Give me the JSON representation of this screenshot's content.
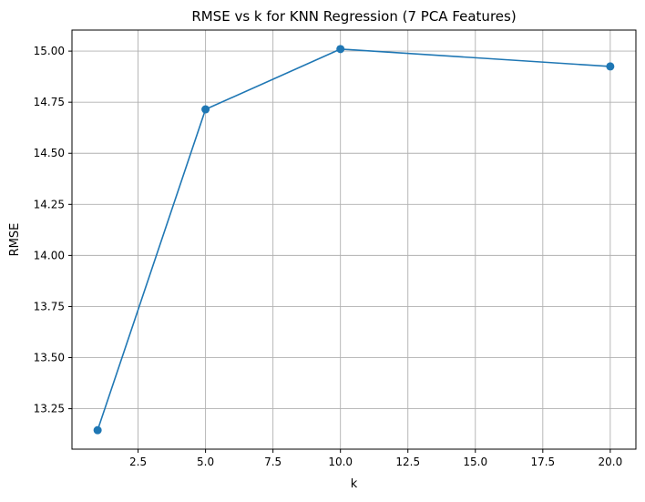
{
  "chart_data": {
    "type": "line",
    "title": "RMSE vs k for KNN Regression (7 PCA Features)",
    "xlabel": "k",
    "ylabel": "RMSE",
    "x": [
      1,
      5,
      10,
      20
    ],
    "series": [
      {
        "values": [
          13.145,
          14.715,
          15.01,
          14.925
        ],
        "color": "#1f77b4",
        "marker": "circle"
      }
    ],
    "xlim": [
      0.05,
      20.95
    ],
    "ylim": [
      13.052,
      15.103
    ],
    "xticks": [
      2.5,
      5.0,
      7.5,
      10.0,
      12.5,
      15.0,
      17.5,
      20.0
    ],
    "xtick_labels": [
      "2.5",
      "5.0",
      "7.5",
      "10.0",
      "12.5",
      "15.0",
      "17.5",
      "20.0"
    ],
    "yticks": [
      13.25,
      13.5,
      13.75,
      14.0,
      14.25,
      14.5,
      14.75,
      15.0
    ],
    "ytick_labels": [
      "13.25",
      "13.50",
      "13.75",
      "14.00",
      "14.25",
      "14.50",
      "14.75",
      "15.00"
    ],
    "grid": true,
    "colors": {
      "line": "#1f77b4",
      "grid": "#b0b0b0",
      "axes": "#000000"
    }
  }
}
